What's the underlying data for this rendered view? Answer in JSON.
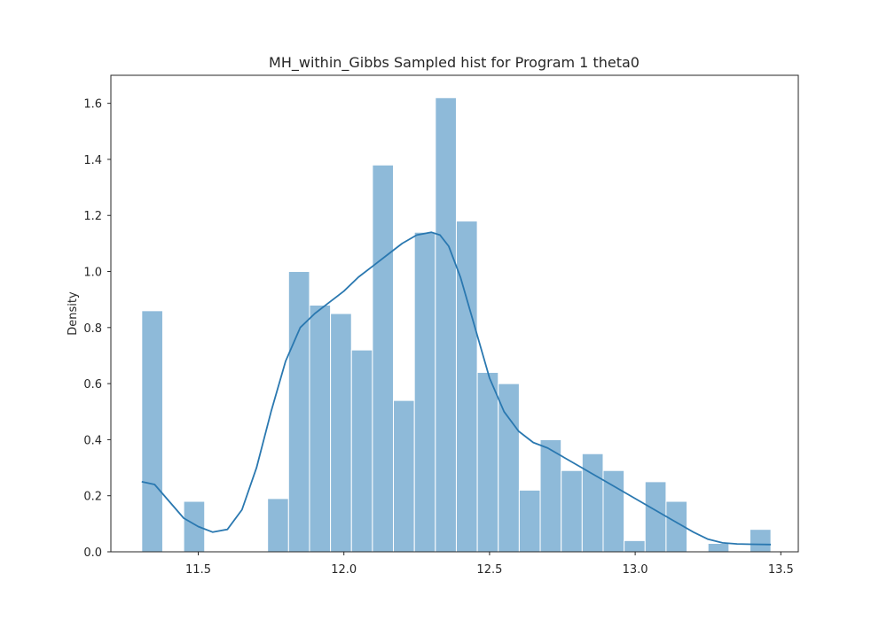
{
  "chart_data": {
    "type": "bar",
    "title": "MH_within_Gibbs Sampled hist for Program 1 theta0",
    "xlabel": "",
    "ylabel": "Density",
    "xlim": [
      11.2,
      13.56
    ],
    "ylim": [
      0,
      1.7
    ],
    "x_ticks": [
      11.5,
      12.0,
      12.5,
      13.0,
      13.5
    ],
    "x_tick_labels": [
      "11.5",
      "12.0",
      "12.5",
      "13.0",
      "13.5"
    ],
    "y_ticks": [
      0.0,
      0.2,
      0.4,
      0.6,
      0.8,
      1.0,
      1.2,
      1.4,
      1.6
    ],
    "y_tick_labels": [
      "0.0",
      "0.2",
      "0.4",
      "0.6",
      "0.8",
      "1.0",
      "1.2",
      "1.4",
      "1.6"
    ],
    "grid": false,
    "bins": {
      "edges": [
        11.306,
        11.378,
        11.45,
        11.522,
        11.594,
        11.666,
        11.738,
        11.81,
        11.882,
        11.954,
        12.026,
        12.098,
        12.17,
        12.242,
        12.314,
        12.386,
        12.458,
        12.53,
        12.602,
        12.674,
        12.746,
        12.818,
        12.89,
        12.962,
        13.034,
        13.106,
        13.178,
        13.25,
        13.322,
        13.394,
        13.466
      ],
      "values": [
        0.86,
        0.0,
        0.18,
        0.0,
        0.0,
        0.0,
        0.19,
        1.0,
        0.88,
        0.85,
        0.72,
        1.38,
        0.54,
        1.14,
        1.62,
        1.18,
        0.64,
        0.6,
        0.22,
        0.4,
        0.29,
        0.35,
        0.29,
        0.04,
        0.25,
        0.18,
        0.0,
        0.03,
        0.0,
        0.08
      ]
    },
    "kde": {
      "x": [
        11.306,
        11.35,
        11.4,
        11.45,
        11.5,
        11.55,
        11.6,
        11.65,
        11.7,
        11.75,
        11.8,
        11.85,
        11.9,
        11.95,
        12.0,
        12.05,
        12.1,
        12.15,
        12.2,
        12.25,
        12.3,
        12.33,
        12.36,
        12.4,
        12.45,
        12.5,
        12.55,
        12.6,
        12.65,
        12.7,
        12.75,
        12.8,
        12.85,
        12.9,
        12.95,
        13.0,
        13.05,
        13.1,
        13.15,
        13.2,
        13.25,
        13.3,
        13.35,
        13.4,
        13.466
      ],
      "y": [
        0.25,
        0.24,
        0.18,
        0.12,
        0.09,
        0.07,
        0.08,
        0.15,
        0.3,
        0.5,
        0.68,
        0.8,
        0.85,
        0.89,
        0.93,
        0.98,
        1.02,
        1.06,
        1.1,
        1.13,
        1.14,
        1.13,
        1.09,
        0.98,
        0.8,
        0.62,
        0.5,
        0.43,
        0.39,
        0.37,
        0.34,
        0.31,
        0.28,
        0.25,
        0.22,
        0.19,
        0.16,
        0.13,
        0.1,
        0.07,
        0.045,
        0.032,
        0.028,
        0.027,
        0.026
      ]
    },
    "colors": {
      "bar": "#8ebad9",
      "bar_edge": "#ffffff",
      "kde": "#2a78b0",
      "axes": "#262626"
    }
  }
}
